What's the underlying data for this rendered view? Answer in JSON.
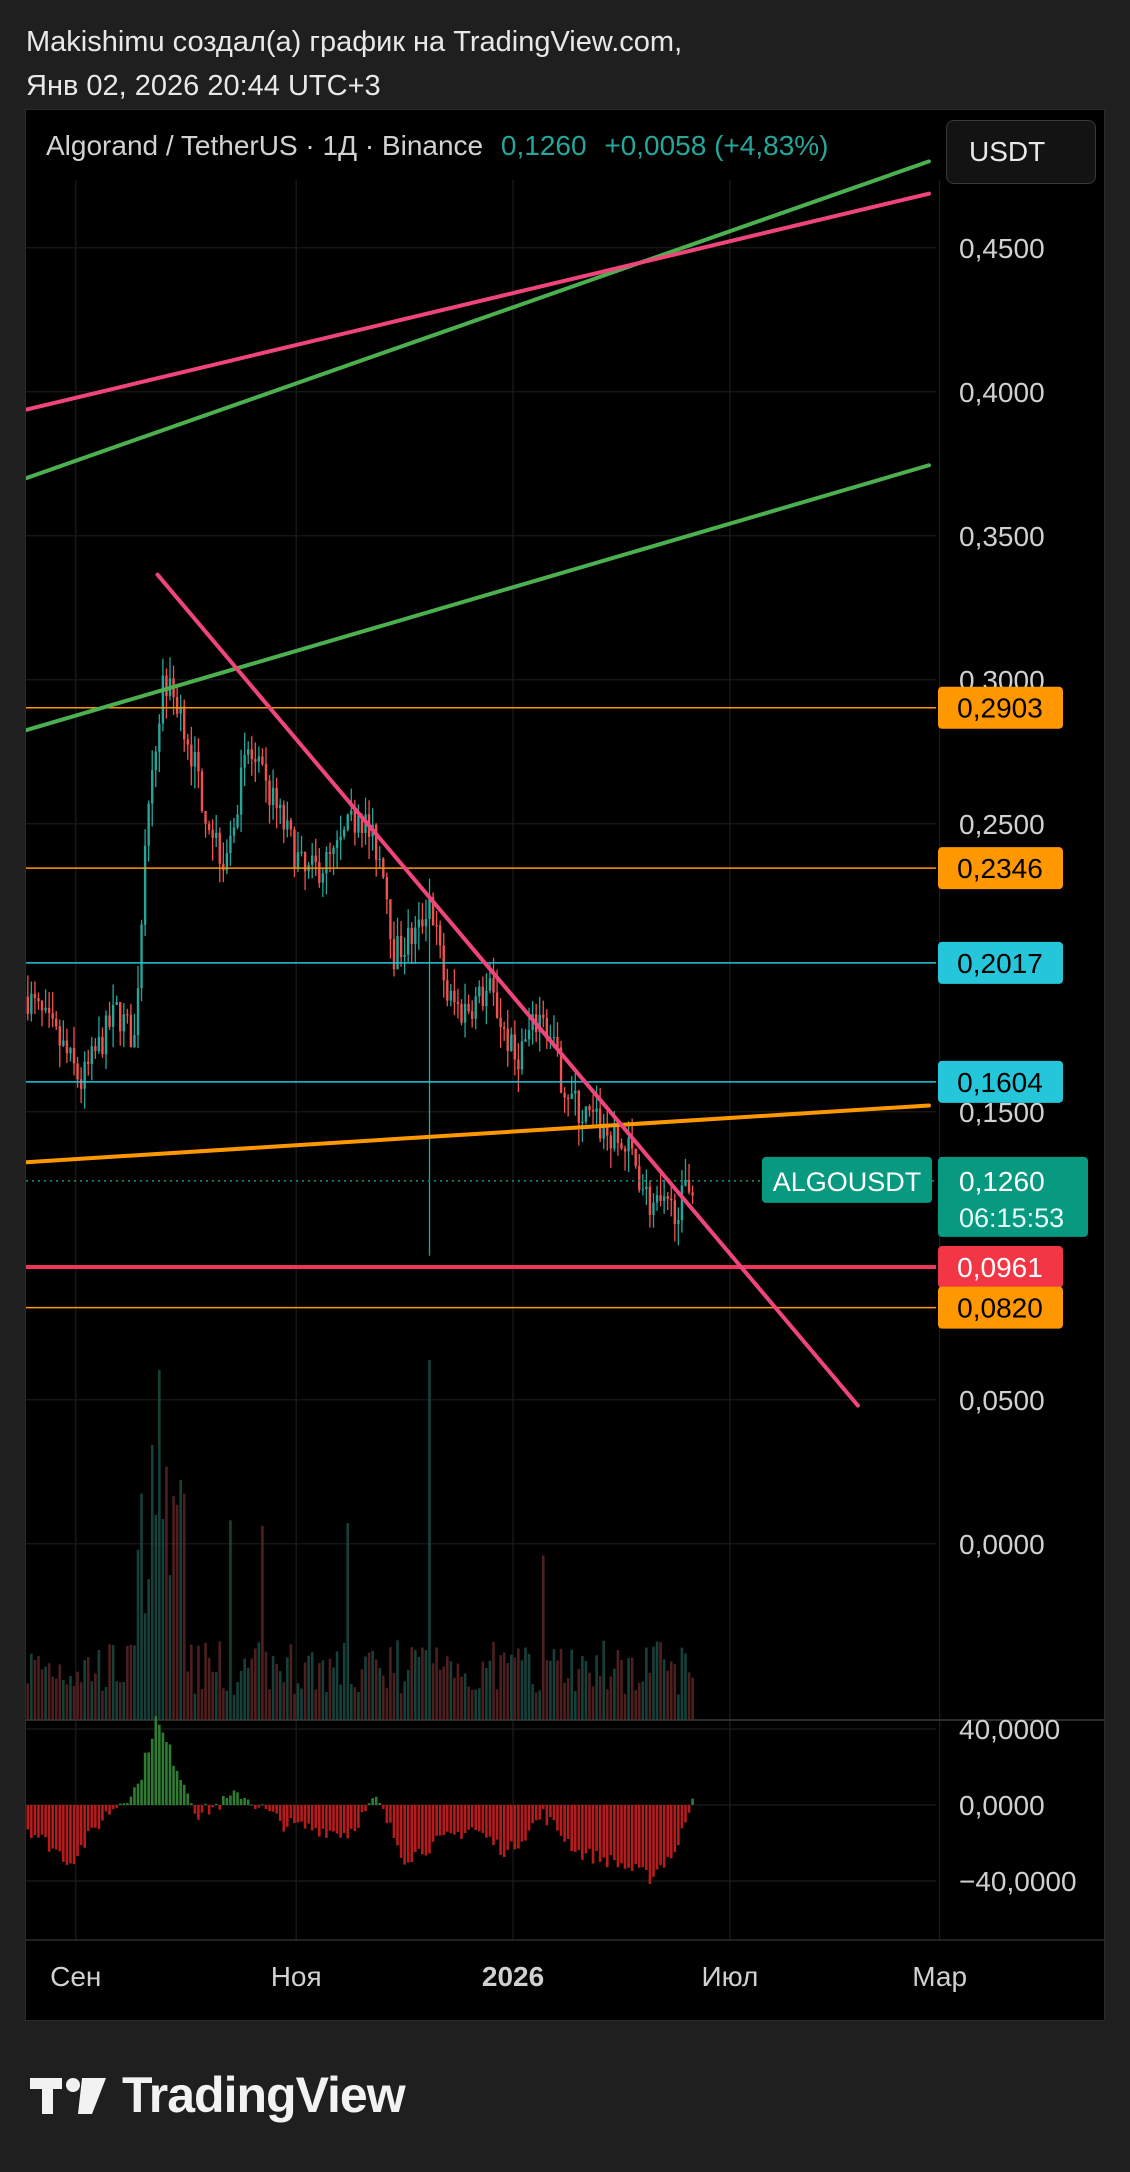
{
  "header": {
    "line1": "Makishimu создал(а) график на TradingView.com,",
    "line2": "Янв 02, 2026 20:44 UTC+3"
  },
  "legend": {
    "symbol": "Algorand / TetherUS · 1Д · Binance",
    "price": "0,1260",
    "change": "+0,0058 (+4,83%)"
  },
  "currency_button": "USDT",
  "price_axis": {
    "ticks": [
      "0,4500",
      "0,4000",
      "0,3500",
      "0,3000",
      "0,2500",
      "0,1500",
      "0,0500",
      "0,0000"
    ],
    "tick_values": [
      0.45,
      0.4,
      0.35,
      0.3,
      0.25,
      0.15,
      0.05,
      0.0
    ]
  },
  "osc_axis": {
    "ticks": [
      "40,0000",
      "0,0000",
      "−40,0000"
    ],
    "tick_values": [
      40,
      0,
      -40
    ]
  },
  "time_axis": {
    "labels": [
      "Июл",
      "Сен",
      "Ноя",
      "2026",
      "Мар"
    ],
    "bold": [
      false,
      false,
      false,
      true,
      false
    ]
  },
  "horizontal_levels": [
    {
      "value": 0.2903,
      "label": "0,2903",
      "line_color": "#ff9800",
      "badge_color": "#ff9800",
      "text_color": "#000000",
      "line_width": 1.5
    },
    {
      "value": 0.2346,
      "label": "0,2346",
      "line_color": "#ff9800",
      "badge_color": "#ff9800",
      "text_color": "#000000",
      "line_width": 1.5
    },
    {
      "value": 0.2017,
      "label": "0,2017",
      "line_color": "#26c6da",
      "badge_color": "#26c6da",
      "text_color": "#000000",
      "line_width": 1.5
    },
    {
      "value": 0.1604,
      "label": "0,1604",
      "line_color": "#26c6da",
      "badge_color": "#26c6da",
      "text_color": "#000000",
      "line_width": 1.5
    },
    {
      "value": 0.0961,
      "label": "0,0961",
      "line_color": "#f0345a",
      "badge_color": "#f23645",
      "text_color": "#ffffff",
      "line_width": 4
    },
    {
      "value": 0.082,
      "label": "0,0820",
      "line_color": "#ff9800",
      "badge_color": "#ff9800",
      "text_color": "#000000",
      "line_width": 1.5
    }
  ],
  "current_price": {
    "symbol_tag": "ALGOUSDT",
    "value": 0.126,
    "label": "0,1260",
    "countdown": "06:15:53",
    "color": "#089981"
  },
  "trend_lines": [
    {
      "name": "upper-green",
      "color": "#4caf50",
      "from": {
        "t": 0,
        "v": 0.37
      },
      "to": {
        "t": 254,
        "v": 0.48
      }
    },
    {
      "name": "upper-pink",
      "color": "#f0457a",
      "from": {
        "t": 0,
        "v": 0.3938
      },
      "to": {
        "t": 254,
        "v": 0.4688
      }
    },
    {
      "name": "lower-green",
      "color": "#4caf50",
      "from": {
        "t": 0,
        "v": 0.2825
      },
      "to": {
        "t": 254,
        "v": 0.3745
      }
    },
    {
      "name": "orange-support",
      "color": "#ff9800",
      "from": {
        "t": 0,
        "v": 0.1325
      },
      "to": {
        "t": 254,
        "v": 0.1522
      }
    },
    {
      "name": "pink-downtrend",
      "color": "#f0457a",
      "from": {
        "t": 37,
        "v": 0.3365
      },
      "to": {
        "t": 234,
        "v": 0.048
      }
    }
  ],
  "timeline": {
    "month_starts": {
      "Июл": 14,
      "Сен": 76,
      "Ноя": 137,
      "2026": 198,
      "Мар": 257
    },
    "last_candle": 187
  },
  "chart_data": {
    "type": "candlestick",
    "title": "Algorand / TetherUS · 1Д · Binance",
    "ylim": [
      0.0,
      0.5
    ],
    "description_points": [
      {
        "t": 0,
        "v": 0.19
      },
      {
        "t": 10,
        "v": 0.172
      },
      {
        "t": 15,
        "v": 0.16
      },
      {
        "t": 25,
        "v": 0.185
      },
      {
        "t": 30,
        "v": 0.175
      },
      {
        "t": 33,
        "v": 0.24
      },
      {
        "t": 38,
        "v": 0.3
      },
      {
        "t": 43,
        "v": 0.29
      },
      {
        "t": 50,
        "v": 0.255
      },
      {
        "t": 55,
        "v": 0.238
      },
      {
        "t": 62,
        "v": 0.275
      },
      {
        "t": 70,
        "v": 0.255
      },
      {
        "t": 78,
        "v": 0.232
      },
      {
        "t": 86,
        "v": 0.238
      },
      {
        "t": 93,
        "v": 0.255
      },
      {
        "t": 100,
        "v": 0.236
      },
      {
        "t": 103,
        "v": 0.205
      },
      {
        "t": 110,
        "v": 0.213
      },
      {
        "t": 113,
        "v": 0.225
      },
      {
        "t": 118,
        "v": 0.19
      },
      {
        "t": 122,
        "v": 0.185
      },
      {
        "t": 130,
        "v": 0.192
      },
      {
        "t": 137,
        "v": 0.168
      },
      {
        "t": 145,
        "v": 0.185
      },
      {
        "t": 150,
        "v": 0.162
      },
      {
        "t": 155,
        "v": 0.15
      },
      {
        "t": 160,
        "v": 0.146
      },
      {
        "t": 165,
        "v": 0.14
      },
      {
        "t": 170,
        "v": 0.135
      },
      {
        "t": 175,
        "v": 0.118
      },
      {
        "t": 180,
        "v": 0.115
      },
      {
        "t": 184,
        "v": 0.119
      },
      {
        "t": 187,
        "v": 0.126
      }
    ],
    "spike_lows": [
      {
        "t": 113,
        "v": 0.1
      }
    ],
    "oscillator": {
      "type": "histogram",
      "points": [
        {
          "t": 0,
          "v": -12
        },
        {
          "t": 12,
          "v": -30
        },
        {
          "t": 22,
          "v": -5
        },
        {
          "t": 31,
          "v": 10
        },
        {
          "t": 36,
          "v": 45
        },
        {
          "t": 42,
          "v": 20
        },
        {
          "t": 48,
          "v": -5
        },
        {
          "t": 60,
          "v": 6
        },
        {
          "t": 72,
          "v": -10
        },
        {
          "t": 90,
          "v": -15
        },
        {
          "t": 98,
          "v": 3
        },
        {
          "t": 106,
          "v": -28
        },
        {
          "t": 115,
          "v": -20
        },
        {
          "t": 125,
          "v": -12
        },
        {
          "t": 135,
          "v": -25
        },
        {
          "t": 145,
          "v": -5
        },
        {
          "t": 155,
          "v": -25
        },
        {
          "t": 165,
          "v": -30
        },
        {
          "t": 175,
          "v": -38
        },
        {
          "t": 183,
          "v": -22
        },
        {
          "t": 187,
          "v": 6
        }
      ]
    }
  }
}
